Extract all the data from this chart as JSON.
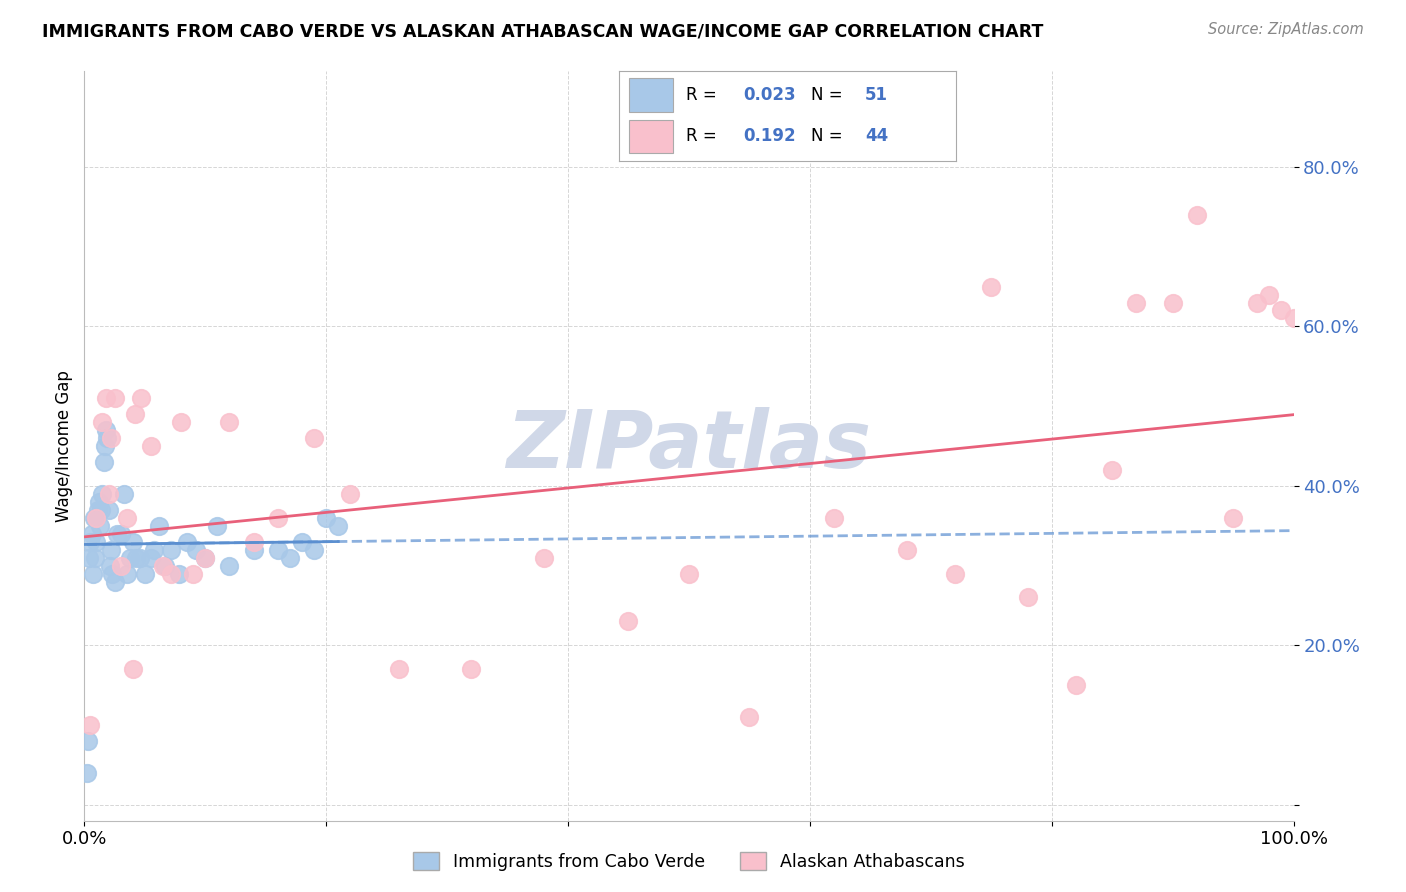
{
  "title": "IMMIGRANTS FROM CABO VERDE VS ALASKAN ATHABASCAN WAGE/INCOME GAP CORRELATION CHART",
  "source": "Source: ZipAtlas.com",
  "ylabel": "Wage/Income Gap",
  "xlim": [
    0.0,
    1.0
  ],
  "ylim": [
    -0.02,
    0.92
  ],
  "ytick_vals": [
    0.0,
    0.2,
    0.4,
    0.6,
    0.8
  ],
  "ytick_labels": [
    "",
    "20.0%",
    "40.0%",
    "60.0%",
    "80.0%"
  ],
  "xtick_vals": [
    0.0,
    0.2,
    0.4,
    0.6,
    0.8,
    1.0
  ],
  "xtick_labels": [
    "0.0%",
    "",
    "",
    "",
    "",
    "100.0%"
  ],
  "blue_scatter_color": "#A8C8E8",
  "pink_scatter_color": "#F9C0CC",
  "blue_line_color": "#5B8FD0",
  "pink_line_color": "#E8607A",
  "axis_tick_color": "#4472C4",
  "grid_color": "#CCCCCC",
  "watermark_color": "#D0D8E8",
  "legend_R_blue": "0.023",
  "legend_N_blue": "51",
  "legend_R_pink": "0.192",
  "legend_N_pink": "44",
  "cabo_verde_x": [
    0.002,
    0.003,
    0.004,
    0.005,
    0.006,
    0.007,
    0.008,
    0.009,
    0.01,
    0.01,
    0.011,
    0.012,
    0.013,
    0.014,
    0.015,
    0.016,
    0.017,
    0.018,
    0.019,
    0.02,
    0.021,
    0.022,
    0.023,
    0.025,
    0.027,
    0.03,
    0.033,
    0.035,
    0.038,
    0.04,
    0.043,
    0.046,
    0.05,
    0.055,
    0.058,
    0.062,
    0.067,
    0.072,
    0.078,
    0.085,
    0.092,
    0.1,
    0.11,
    0.12,
    0.14,
    0.16,
    0.17,
    0.18,
    0.19,
    0.2,
    0.21
  ],
  "cabo_verde_y": [
    0.04,
    0.08,
    0.31,
    0.33,
    0.34,
    0.29,
    0.36,
    0.31,
    0.33,
    0.36,
    0.37,
    0.38,
    0.35,
    0.37,
    0.39,
    0.43,
    0.45,
    0.47,
    0.46,
    0.37,
    0.3,
    0.32,
    0.29,
    0.28,
    0.34,
    0.34,
    0.39,
    0.29,
    0.31,
    0.33,
    0.31,
    0.31,
    0.29,
    0.31,
    0.32,
    0.35,
    0.3,
    0.32,
    0.29,
    0.33,
    0.32,
    0.31,
    0.35,
    0.3,
    0.32,
    0.32,
    0.31,
    0.33,
    0.32,
    0.36,
    0.35
  ],
  "alaskan_x": [
    0.005,
    0.01,
    0.015,
    0.018,
    0.02,
    0.022,
    0.025,
    0.03,
    0.035,
    0.04,
    0.042,
    0.047,
    0.055,
    0.065,
    0.072,
    0.08,
    0.09,
    0.1,
    0.12,
    0.14,
    0.16,
    0.19,
    0.22,
    0.26,
    0.32,
    0.38,
    0.45,
    0.5,
    0.55,
    0.62,
    0.68,
    0.72,
    0.75,
    0.78,
    0.82,
    0.85,
    0.87,
    0.9,
    0.92,
    0.95,
    0.97,
    0.98,
    0.99,
    1.0
  ],
  "alaskan_y": [
    0.1,
    0.36,
    0.48,
    0.51,
    0.39,
    0.46,
    0.51,
    0.3,
    0.36,
    0.17,
    0.49,
    0.51,
    0.45,
    0.3,
    0.29,
    0.48,
    0.29,
    0.31,
    0.48,
    0.33,
    0.36,
    0.46,
    0.39,
    0.17,
    0.17,
    0.31,
    0.23,
    0.29,
    0.11,
    0.36,
    0.32,
    0.29,
    0.65,
    0.26,
    0.15,
    0.42,
    0.63,
    0.63,
    0.74,
    0.36,
    0.63,
    0.64,
    0.62,
    0.61
  ]
}
